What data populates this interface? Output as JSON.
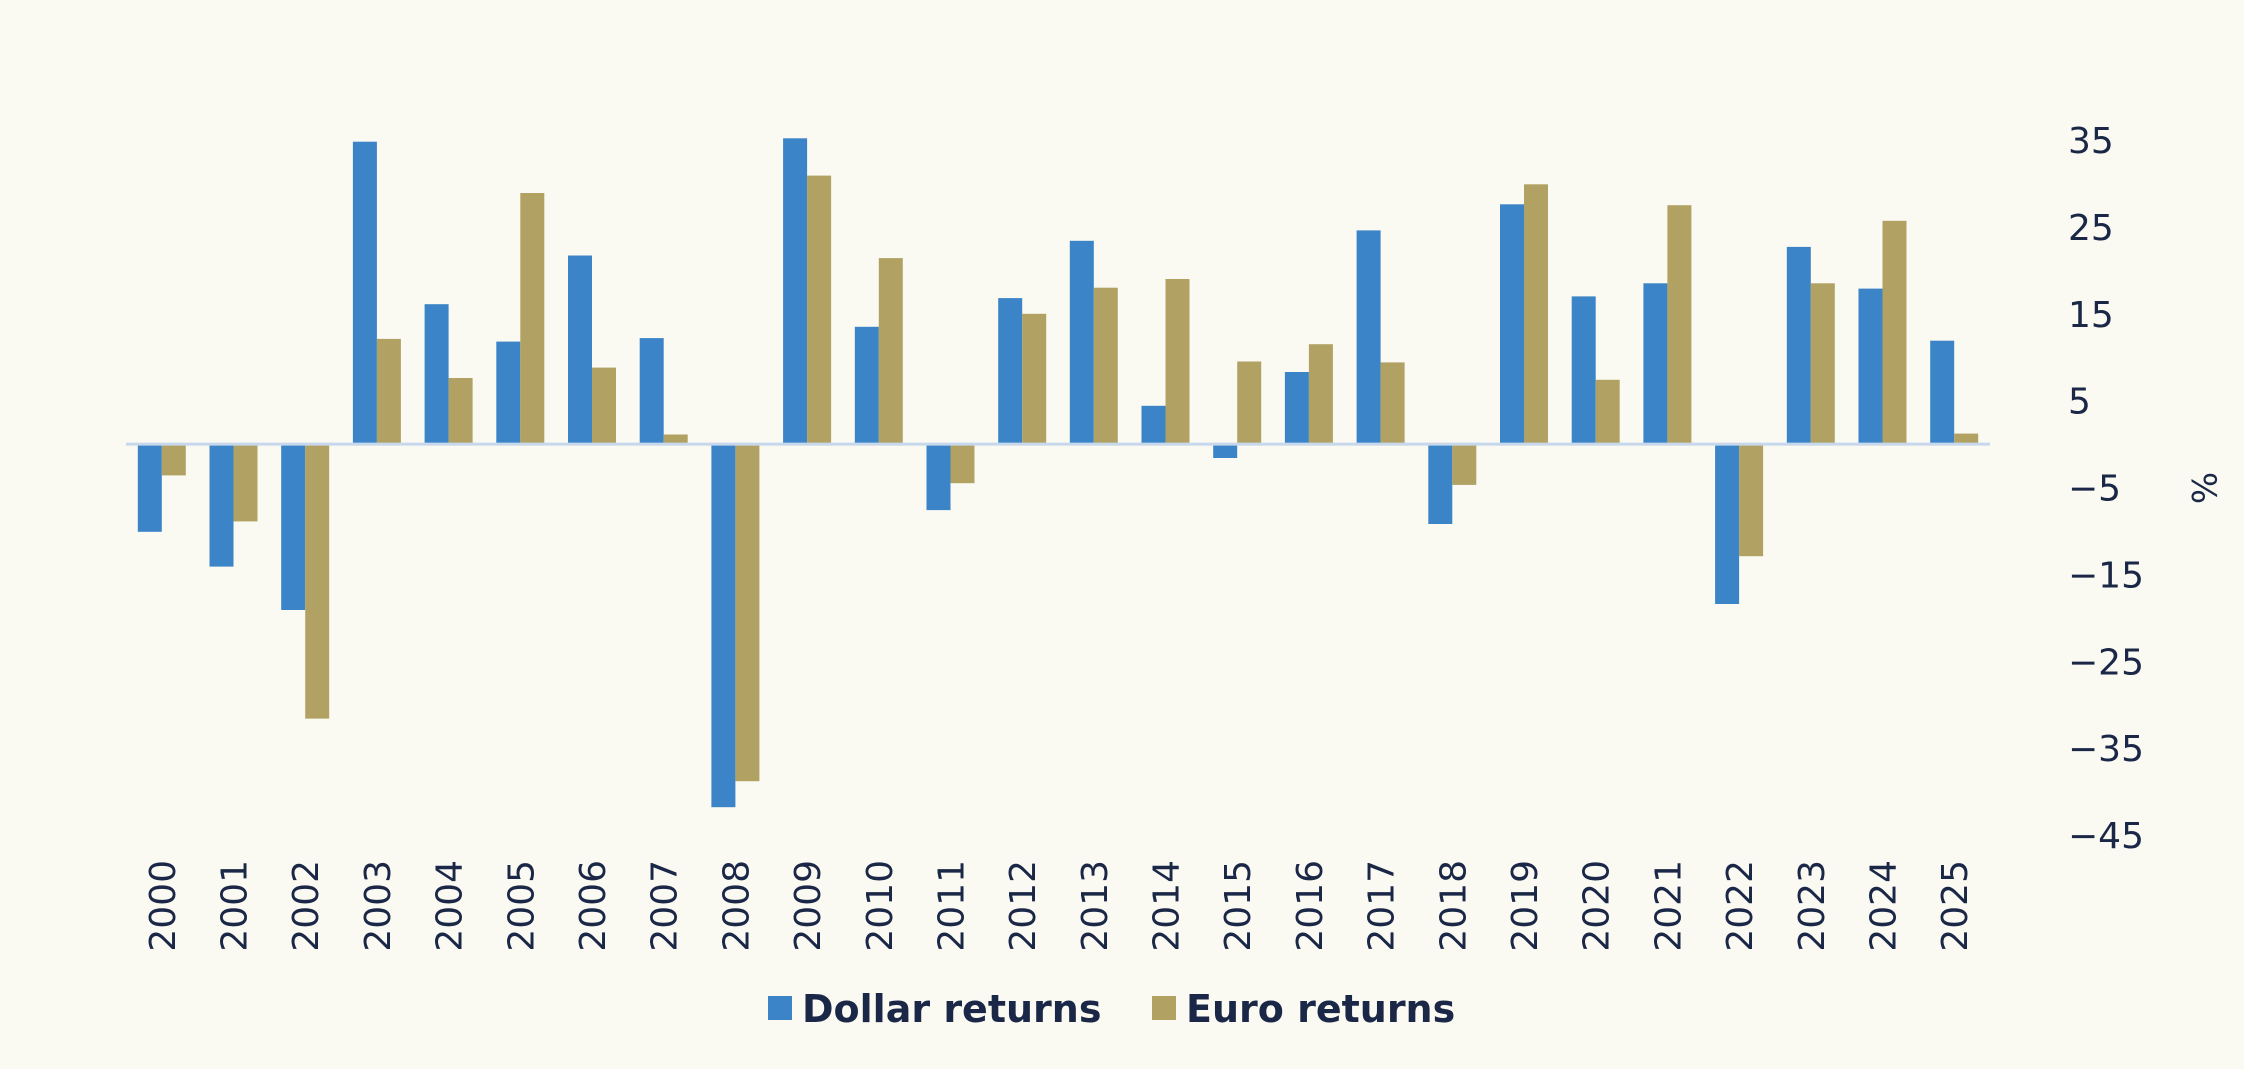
{
  "chart_data": {
    "type": "bar",
    "title": "",
    "xlabel": "",
    "ylabel": "%",
    "ylim": [
      -45,
      35
    ],
    "yticks": [
      35,
      25,
      15,
      5,
      -5,
      -15,
      -25,
      -35,
      -45
    ],
    "y_axis_position": "right",
    "grid": false,
    "legend_position": "bottom-center",
    "categories": [
      "2000",
      "2001",
      "2002",
      "2003",
      "2004",
      "2005",
      "2006",
      "2007",
      "2008",
      "2009",
      "2010",
      "2011",
      "2012",
      "2013",
      "2014",
      "2015",
      "2016",
      "2017",
      "2018",
      "2019",
      "2020",
      "2021",
      "2022",
      "2023",
      "2024",
      "2025"
    ],
    "series": [
      {
        "name": "Dollar returns",
        "color": "#3a84c7",
        "values": [
          -10.1,
          -14.1,
          -19.1,
          34.8,
          16.1,
          11.8,
          21.7,
          12.2,
          -41.8,
          35.2,
          13.5,
          -7.6,
          16.8,
          23.4,
          4.4,
          -1.6,
          8.3,
          24.6,
          -9.2,
          27.6,
          17.0,
          18.5,
          -18.4,
          22.7,
          17.9,
          11.9
        ],
        "data_labels": []
      },
      {
        "name": "Euro returns",
        "color": "#b1a264",
        "values": [
          -3.6,
          -8.9,
          -31.6,
          12.1,
          7.6,
          28.9,
          8.8,
          1.1,
          -38.8,
          30.9,
          21.4,
          -4.5,
          15.0,
          18.0,
          19.0,
          9.5,
          11.5,
          9.4,
          -4.7,
          29.9,
          7.4,
          27.5,
          -12.9,
          18.5,
          25.7,
          1.2
        ],
        "data_labels": []
      }
    ]
  }
}
